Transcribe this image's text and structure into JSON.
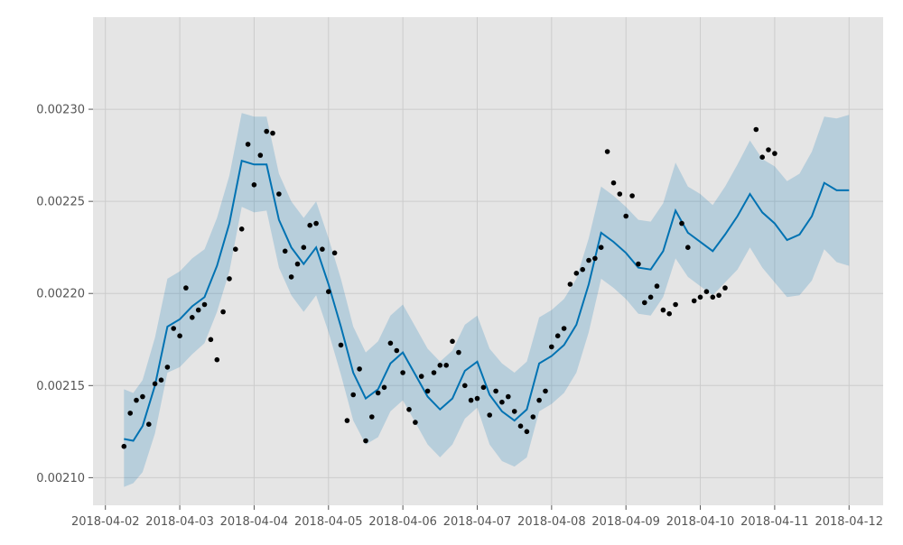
{
  "colors": {
    "plot_background": "#e5e5e5",
    "grid": "#cccccc",
    "forecast_line": "#0072b2",
    "uncertainty_band": "#0072b2",
    "points": "#000000",
    "tick_text": "#555555"
  },
  "chart_data": {
    "type": "line",
    "title": "",
    "xlabel": "",
    "ylabel": "",
    "grid": true,
    "xlim": [
      "2018-04-01T20:00",
      "2018-04-12T11:00"
    ],
    "ylim": [
      0.002085,
      0.00235
    ],
    "x_ticks": [
      {
        "x": "2018-04-02",
        "label": "2018-04-02"
      },
      {
        "x": "2018-04-03",
        "label": "2018-04-03"
      },
      {
        "x": "2018-04-04",
        "label": "2018-04-04"
      },
      {
        "x": "2018-04-05",
        "label": "2018-04-05"
      },
      {
        "x": "2018-04-06",
        "label": "2018-04-06"
      },
      {
        "x": "2018-04-07",
        "label": "2018-04-07"
      },
      {
        "x": "2018-04-08",
        "label": "2018-04-08"
      },
      {
        "x": "2018-04-09",
        "label": "2018-04-09"
      },
      {
        "x": "2018-04-10",
        "label": "2018-04-10"
      },
      {
        "x": "2018-04-11",
        "label": "2018-04-11"
      },
      {
        "x": "2018-04-12",
        "label": "2018-04-12"
      }
    ],
    "y_ticks": [
      {
        "y": 0.0021,
        "label": "0.00210"
      },
      {
        "y": 0.00215,
        "label": "0.00215"
      },
      {
        "y": 0.0022,
        "label": "0.00220"
      },
      {
        "y": 0.00225,
        "label": "0.00225"
      },
      {
        "y": 0.0023,
        "label": "0.00230"
      }
    ],
    "forecast": {
      "x": [
        "2018-04-02T06:00",
        "2018-04-02T09:00",
        "2018-04-02T12:00",
        "2018-04-02T16:00",
        "2018-04-02T20:00",
        "2018-04-03T00:00",
        "2018-04-03T04:00",
        "2018-04-03T08:00",
        "2018-04-03T12:00",
        "2018-04-03T16:00",
        "2018-04-03T20:00",
        "2018-04-04T00:00",
        "2018-04-04T04:00",
        "2018-04-04T08:00",
        "2018-04-04T12:00",
        "2018-04-04T16:00",
        "2018-04-04T20:00",
        "2018-04-05T00:00",
        "2018-04-05T04:00",
        "2018-04-05T08:00",
        "2018-04-05T12:00",
        "2018-04-05T16:00",
        "2018-04-05T20:00",
        "2018-04-06T00:00",
        "2018-04-06T04:00",
        "2018-04-06T08:00",
        "2018-04-06T12:00",
        "2018-04-06T16:00",
        "2018-04-06T20:00",
        "2018-04-07T00:00",
        "2018-04-07T04:00",
        "2018-04-07T08:00",
        "2018-04-07T12:00",
        "2018-04-07T16:00",
        "2018-04-07T20:00",
        "2018-04-08T00:00",
        "2018-04-08T04:00",
        "2018-04-08T08:00",
        "2018-04-08T12:00",
        "2018-04-08T16:00",
        "2018-04-08T20:00",
        "2018-04-09T00:00",
        "2018-04-09T04:00",
        "2018-04-09T08:00",
        "2018-04-09T12:00",
        "2018-04-09T16:00",
        "2018-04-09T20:00",
        "2018-04-10T00:00",
        "2018-04-10T04:00",
        "2018-04-10T08:00",
        "2018-04-10T12:00",
        "2018-04-10T16:00",
        "2018-04-10T20:00",
        "2018-04-11T00:00",
        "2018-04-11T04:00",
        "2018-04-11T08:00",
        "2018-04-11T12:00",
        "2018-04-11T16:00",
        "2018-04-11T20:00",
        "2018-04-12T00:00"
      ],
      "yhat": [
        0.002121,
        0.00212,
        0.002128,
        0.00215,
        0.002182,
        0.002186,
        0.002193,
        0.002198,
        0.002215,
        0.002238,
        0.002272,
        0.00227,
        0.00227,
        0.00224,
        0.002225,
        0.002216,
        0.002225,
        0.002205,
        0.002182,
        0.002157,
        0.002143,
        0.002148,
        0.002162,
        0.002168,
        0.002156,
        0.002144,
        0.002137,
        0.002143,
        0.002158,
        0.002163,
        0.002145,
        0.002136,
        0.002131,
        0.002137,
        0.002162,
        0.002166,
        0.002172,
        0.002183,
        0.002205,
        0.002233,
        0.002228,
        0.002222,
        0.002214,
        0.002213,
        0.002223,
        0.002245,
        0.002233,
        0.002228,
        0.002223,
        0.002232,
        0.002242,
        0.002254,
        0.002244,
        0.002238,
        0.002229,
        0.002232,
        0.002242,
        0.00226,
        0.002256,
        0.002256
      ],
      "yhat_lower": [
        0.002095,
        0.002097,
        0.002103,
        0.002124,
        0.002157,
        0.00216,
        0.002167,
        0.002173,
        0.00219,
        0.002212,
        0.002247,
        0.002244,
        0.002245,
        0.002214,
        0.002199,
        0.00219,
        0.002199,
        0.002179,
        0.002156,
        0.002131,
        0.002118,
        0.002122,
        0.002136,
        0.002142,
        0.00213,
        0.002118,
        0.002111,
        0.002118,
        0.002132,
        0.002138,
        0.002118,
        0.002109,
        0.002106,
        0.002111,
        0.002136,
        0.00214,
        0.002146,
        0.002157,
        0.002179,
        0.002208,
        0.002203,
        0.002197,
        0.002189,
        0.002188,
        0.002198,
        0.002219,
        0.002209,
        0.002204,
        0.002199,
        0.002206,
        0.002213,
        0.002225,
        0.002214,
        0.002206,
        0.002198,
        0.002199,
        0.002207,
        0.002224,
        0.002217,
        0.002215
      ],
      "yhat_upper": [
        0.002148,
        0.002146,
        0.002153,
        0.002176,
        0.002208,
        0.002212,
        0.002219,
        0.002224,
        0.002241,
        0.002264,
        0.002298,
        0.002296,
        0.002296,
        0.002265,
        0.00225,
        0.002241,
        0.00225,
        0.00223,
        0.002208,
        0.002182,
        0.002168,
        0.002174,
        0.002188,
        0.002194,
        0.002182,
        0.00217,
        0.002163,
        0.002169,
        0.002183,
        0.002188,
        0.00217,
        0.002162,
        0.002157,
        0.002163,
        0.002187,
        0.002191,
        0.002197,
        0.002208,
        0.00223,
        0.002258,
        0.002253,
        0.002247,
        0.00224,
        0.002239,
        0.002249,
        0.002271,
        0.002258,
        0.002254,
        0.002248,
        0.002258,
        0.00227,
        0.002283,
        0.002273,
        0.002269,
        0.002261,
        0.002265,
        0.002277,
        0.002296,
        0.002295,
        0.002297
      ]
    },
    "observed": {
      "x": [
        "2018-04-02T06:00",
        "2018-04-02T08:00",
        "2018-04-02T10:00",
        "2018-04-02T12:00",
        "2018-04-02T14:00",
        "2018-04-02T16:00",
        "2018-04-02T18:00",
        "2018-04-02T20:00",
        "2018-04-02T22:00",
        "2018-04-03T00:00",
        "2018-04-03T02:00",
        "2018-04-03T04:00",
        "2018-04-03T06:00",
        "2018-04-03T08:00",
        "2018-04-03T10:00",
        "2018-04-03T12:00",
        "2018-04-03T14:00",
        "2018-04-03T16:00",
        "2018-04-03T18:00",
        "2018-04-03T20:00",
        "2018-04-03T22:00",
        "2018-04-04T00:00",
        "2018-04-04T02:00",
        "2018-04-04T04:00",
        "2018-04-04T06:00",
        "2018-04-04T08:00",
        "2018-04-04T10:00",
        "2018-04-04T12:00",
        "2018-04-04T14:00",
        "2018-04-04T16:00",
        "2018-04-04T18:00",
        "2018-04-04T20:00",
        "2018-04-04T22:00",
        "2018-04-05T00:00",
        "2018-04-05T02:00",
        "2018-04-05T04:00",
        "2018-04-05T06:00",
        "2018-04-05T08:00",
        "2018-04-05T10:00",
        "2018-04-05T12:00",
        "2018-04-05T14:00",
        "2018-04-05T16:00",
        "2018-04-05T18:00",
        "2018-04-05T20:00",
        "2018-04-05T22:00",
        "2018-04-06T00:00",
        "2018-04-06T02:00",
        "2018-04-06T04:00",
        "2018-04-06T06:00",
        "2018-04-06T08:00",
        "2018-04-06T10:00",
        "2018-04-06T12:00",
        "2018-04-06T14:00",
        "2018-04-06T16:00",
        "2018-04-06T18:00",
        "2018-04-06T20:00",
        "2018-04-06T22:00",
        "2018-04-07T00:00",
        "2018-04-07T02:00",
        "2018-04-07T04:00",
        "2018-04-07T06:00",
        "2018-04-07T08:00",
        "2018-04-07T10:00",
        "2018-04-07T12:00",
        "2018-04-07T14:00",
        "2018-04-07T16:00",
        "2018-04-07T18:00",
        "2018-04-07T20:00",
        "2018-04-07T22:00",
        "2018-04-08T00:00",
        "2018-04-08T02:00",
        "2018-04-08T04:00",
        "2018-04-08T06:00",
        "2018-04-08T08:00",
        "2018-04-08T10:00",
        "2018-04-08T12:00",
        "2018-04-08T14:00",
        "2018-04-08T16:00",
        "2018-04-08T18:00",
        "2018-04-08T20:00",
        "2018-04-08T22:00",
        "2018-04-09T00:00",
        "2018-04-09T02:00",
        "2018-04-09T04:00",
        "2018-04-09T06:00",
        "2018-04-09T08:00",
        "2018-04-09T10:00",
        "2018-04-09T12:00",
        "2018-04-09T14:00",
        "2018-04-09T16:00",
        "2018-04-09T18:00",
        "2018-04-09T20:00",
        "2018-04-09T22:00",
        "2018-04-10T00:00",
        "2018-04-10T02:00",
        "2018-04-10T04:00",
        "2018-04-10T06:00",
        "2018-04-10T08:00",
        "2018-04-10T18:00",
        "2018-04-10T20:00",
        "2018-04-10T22:00",
        "2018-04-11T00:00"
      ],
      "y": [
        0.002117,
        0.002135,
        0.002142,
        0.002144,
        0.002129,
        0.002151,
        0.002153,
        0.00216,
        0.002181,
        0.002177,
        0.002203,
        0.002187,
        0.002191,
        0.002194,
        0.002175,
        0.002164,
        0.00219,
        0.002208,
        0.002224,
        0.002235,
        0.002281,
        0.002259,
        0.002275,
        0.002288,
        0.002287,
        0.002254,
        0.002223,
        0.002209,
        0.002216,
        0.002225,
        0.002237,
        0.002238,
        0.002224,
        0.002201,
        0.002222,
        0.002172,
        0.002131,
        0.002145,
        0.002159,
        0.00212,
        0.002133,
        0.002146,
        0.002149,
        0.002173,
        0.002169,
        0.002157,
        0.002137,
        0.00213,
        0.002155,
        0.002147,
        0.002157,
        0.002161,
        0.002161,
        0.002174,
        0.002168,
        0.00215,
        0.002142,
        0.002143,
        0.002149,
        0.002134,
        0.002147,
        0.002141,
        0.002144,
        0.002136,
        0.002128,
        0.002125,
        0.002133,
        0.002142,
        0.002147,
        0.002171,
        0.002177,
        0.002181,
        0.002205,
        0.002211,
        0.002213,
        0.002218,
        0.002219,
        0.002225,
        0.002277,
        0.00226,
        0.002254,
        0.002242,
        0.002253,
        0.002216,
        0.002195,
        0.002198,
        0.002204,
        0.002191,
        0.002189,
        0.002194,
        0.002238,
        0.002225,
        0.002196,
        0.002198,
        0.002201,
        0.002198,
        0.002199,
        0.002203,
        0.002289,
        0.002274,
        0.002278,
        0.002276
      ]
    }
  }
}
